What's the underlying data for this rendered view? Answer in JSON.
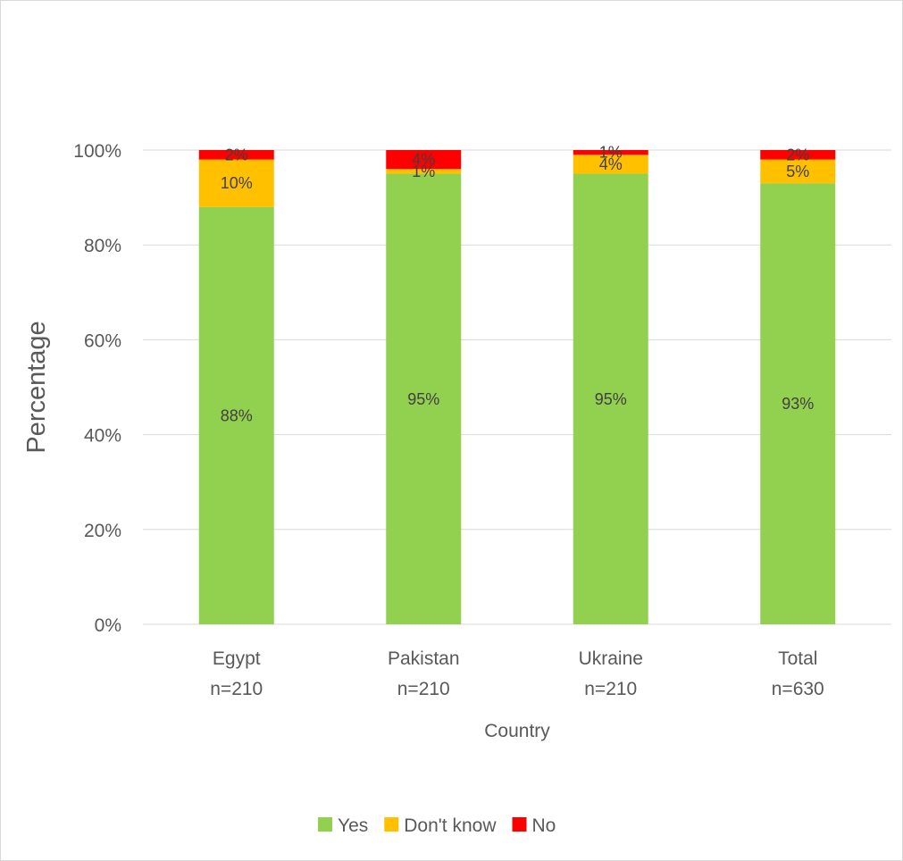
{
  "chart_data": {
    "type": "bar",
    "stacked": true,
    "categories": [
      "Egypt\nn=210",
      "Pakistan\nn=210",
      "Ukraine\nn=210",
      "Total\nn=630"
    ],
    "series": [
      {
        "name": "Yes",
        "color": "#92d050",
        "values": [
          88,
          95,
          95,
          93
        ],
        "labels": [
          "88%",
          "95%",
          "95%",
          "93%"
        ]
      },
      {
        "name": "Don't know",
        "color": "#ffc000",
        "values": [
          10,
          1,
          4,
          5
        ],
        "labels": [
          "10%",
          "1%",
          "4%",
          "5%"
        ]
      },
      {
        "name": "No",
        "color": "#ff0000",
        "values": [
          2,
          4,
          1,
          2
        ],
        "labels": [
          "2%",
          "4%",
          "1%",
          "2%"
        ]
      }
    ],
    "xlabel": "Country",
    "ylabel": "Percentage",
    "ylim": [
      0,
      100
    ],
    "yticks": [
      "0%",
      "20%",
      "40%",
      "60%",
      "80%",
      "100%"
    ],
    "grid": true,
    "legend": "bottom"
  }
}
